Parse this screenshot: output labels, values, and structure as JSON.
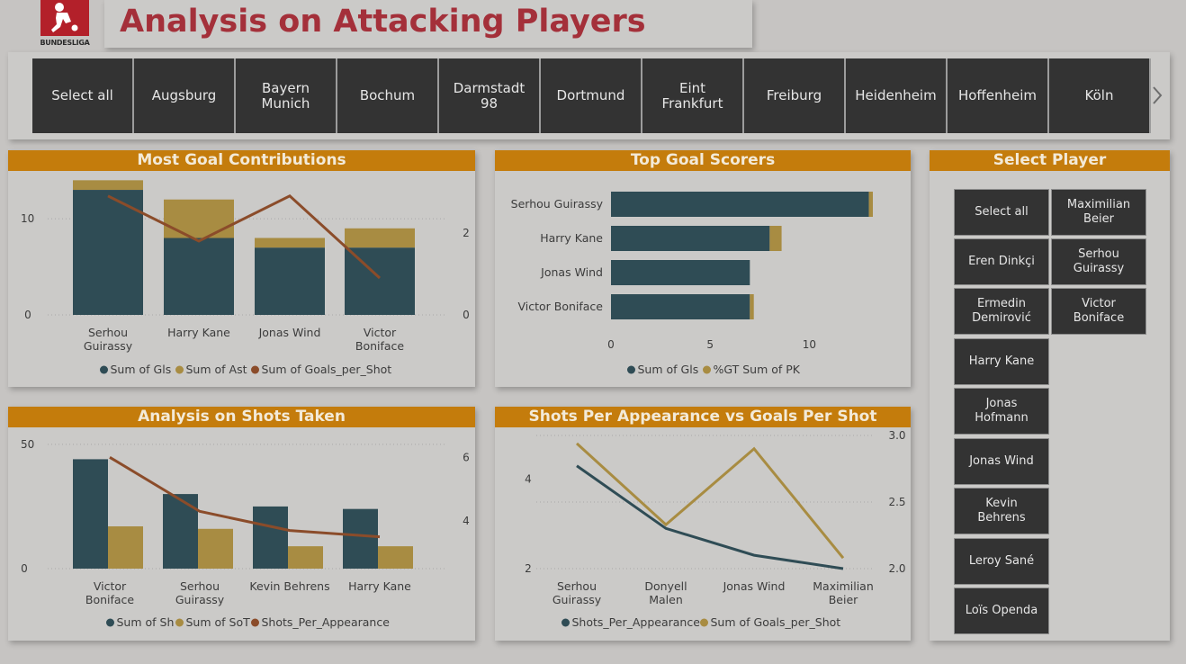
{
  "logo": {
    "text": "BUNDESLIGA"
  },
  "title": "Analysis on Attacking Players",
  "teams": [
    "Select all",
    "Augsburg",
    "Bayern\nMunich",
    "Bochum",
    "Darmstadt\n98",
    "Dortmund",
    "Eint\nFrankfurt",
    "Freiburg",
    "Heidenheim",
    "Hoffenheim",
    "Köln"
  ],
  "colors": {
    "teal": "#2f4c55",
    "gold": "#a88c42",
    "brown": "#8b4c2a",
    "header": "#c47c0c",
    "title": "#a4303a"
  },
  "panels": {
    "goal_contrib": {
      "title": "Most Goal Contributions"
    },
    "top_scorers": {
      "title": "Top Goal Scorers"
    },
    "shots": {
      "title": "Analysis on Shots Taken"
    },
    "spa_vs_gps": {
      "title": "Shots Per Appearance vs Goals Per Shot"
    },
    "select_player": {
      "title": "Select Player",
      "players": [
        "Select all",
        "Maximilian\nBeier",
        "Eren Dinkçi",
        "Serhou\nGuirassy",
        "Ermedin\nDemirović",
        "Victor\nBoniface",
        "Harry Kane",
        "Jonas\nHofmann",
        "Jonas Wind",
        "Kevin\nBehrens",
        "Leroy Sané",
        "Loïs Openda"
      ]
    }
  },
  "chart_data": [
    {
      "id": "goal_contrib",
      "type": "bar",
      "stacked": true,
      "categories": [
        "Serhou\nGuirassy",
        "Harry Kane",
        "Jonas Wind",
        "Victor\nBoniface"
      ],
      "series": [
        {
          "name": "Sum of Gls",
          "values": [
            13,
            8,
            7,
            7
          ]
        },
        {
          "name": "Sum of Ast",
          "values": [
            1,
            4,
            1,
            2
          ]
        }
      ],
      "line_series": {
        "name": "Sum of Goals_per_Shot",
        "values": [
          2.9,
          1.8,
          2.9,
          0.9
        ]
      },
      "y_ticks": [
        "0",
        "10"
      ],
      "y2_ticks": [
        "0",
        "2"
      ],
      "ylim": [
        0,
        14.5
      ],
      "y2lim": [
        0,
        3.4
      ],
      "legend": "bottom"
    },
    {
      "id": "top_scorers",
      "type": "bar",
      "orientation": "horizontal",
      "stacked": true,
      "categories": [
        "Serhou Guirassy",
        "Harry Kane",
        "Jonas Wind",
        "Victor Boniface"
      ],
      "series": [
        {
          "name": "Sum of Gls",
          "values": [
            13,
            8,
            7,
            7
          ]
        },
        {
          "name": "%GT Sum of PK",
          "values": [
            0.2,
            0.6,
            0,
            0.2
          ]
        }
      ],
      "x_ticks": [
        "0",
        "5",
        "10"
      ],
      "xlim": [
        0,
        13.7
      ],
      "legend": "bottom"
    },
    {
      "id": "shots",
      "type": "bar",
      "categories": [
        "Victor\nBoniface",
        "Serhou\nGuirassy",
        "Kevin Behrens",
        "Harry Kane"
      ],
      "series": [
        {
          "name": "Sum of Sh",
          "values": [
            44,
            30,
            25,
            24
          ]
        },
        {
          "name": "Sum of SoT",
          "values": [
            17,
            16,
            9,
            9
          ]
        }
      ],
      "line_series": {
        "name": "Shots_Per_Appearance",
        "values": [
          6.0,
          4.3,
          3.7,
          3.5
        ]
      },
      "y_ticks": [
        "0",
        "50"
      ],
      "y2_ticks": [
        "4",
        "6"
      ],
      "ylim": [
        0,
        55
      ],
      "y2lim": [
        2.5,
        6.8
      ],
      "legend": "bottom"
    },
    {
      "id": "spa_vs_gps",
      "type": "line",
      "categories": [
        "Serhou\nGuirassy",
        "Donyell\nMalen",
        "Jonas Wind",
        "Maximilian\nBeier"
      ],
      "series": [
        {
          "name": "Shots_Per_Appearance",
          "values": [
            4.3,
            2.9,
            2.3,
            2.0
          ],
          "axis": "left"
        },
        {
          "name": "Sum of Goals_per_Shot",
          "values": [
            2.94,
            2.33,
            2.9,
            2.08
          ],
          "axis": "right"
        }
      ],
      "y_ticks": [
        "2",
        "4"
      ],
      "y2_ticks": [
        "2.0",
        "2.5",
        "3.0"
      ],
      "ylim": [
        2,
        4.98
      ],
      "y2lim": [
        2.0,
        3.0
      ],
      "legend": "bottom"
    }
  ]
}
